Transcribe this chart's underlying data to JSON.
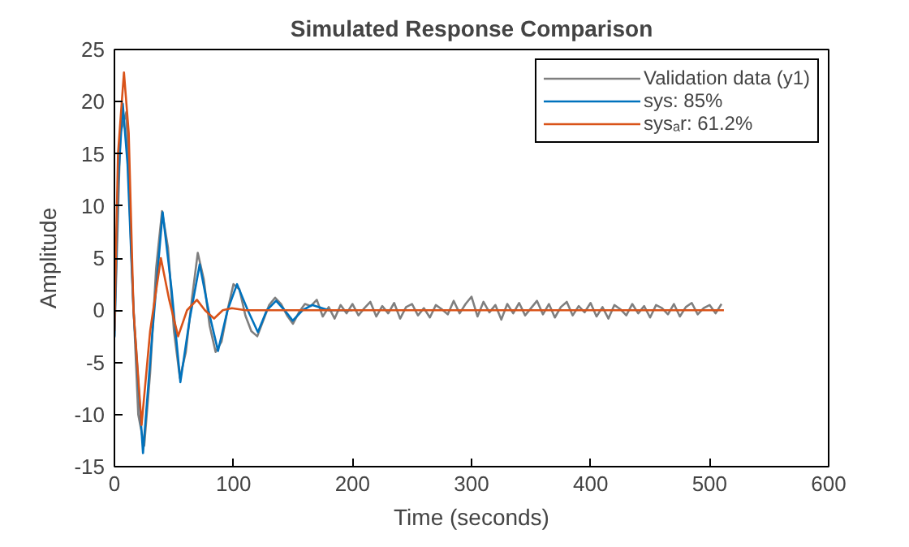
{
  "chart_data": {
    "type": "line",
    "title": "Simulated Response Comparison",
    "xlabel": "Time (seconds)",
    "ylabel": "Amplitude",
    "xlim": [
      0,
      600
    ],
    "xticks": [
      0,
      100,
      200,
      300,
      400,
      500,
      600
    ],
    "ylim": [
      -15,
      25
    ],
    "yticks": [
      -15,
      -10,
      -5,
      0,
      5,
      10,
      15,
      20,
      25
    ],
    "grid": false,
    "legend": "top right",
    "line_style": "solid",
    "marker": "none",
    "series": [
      {
        "name": "Validation data (y1)",
        "color": "#7f7f7f",
        "x": [
          0,
          5,
          10,
          15,
          20,
          25,
          30,
          35,
          40,
          45,
          50,
          55,
          60,
          65,
          70,
          75,
          80,
          85,
          90,
          95,
          100,
          105,
          110,
          115,
          120,
          125,
          130,
          135,
          140,
          145,
          150,
          155,
          160,
          165,
          170,
          175,
          180,
          185,
          190,
          195,
          200,
          205,
          210,
          215,
          220,
          225,
          230,
          235,
          240,
          245,
          250,
          255,
          260,
          265,
          270,
          275,
          280,
          285,
          290,
          295,
          300,
          305,
          310,
          315,
          320,
          325,
          330,
          335,
          340,
          345,
          350,
          355,
          360,
          365,
          370,
          375,
          380,
          385,
          390,
          395,
          400,
          405,
          410,
          415,
          420,
          425,
          430,
          435,
          440,
          445,
          450,
          455,
          460,
          465,
          470,
          475,
          480,
          485,
          490,
          495,
          500,
          505,
          510
        ],
        "values": [
          -2.5,
          17,
          19,
          3,
          -10,
          -13,
          -6,
          4,
          9.5,
          6,
          -2,
          -6.5,
          -4,
          1,
          5.5,
          3,
          -1.5,
          -4,
          -3,
          0,
          2.5,
          2,
          -0.5,
          -2,
          -2.5,
          -1,
          0.5,
          1.2,
          0.6,
          -0.5,
          -1.3,
          -0.2,
          0.6,
          0.4,
          1.0,
          -0.6,
          0.3,
          -0.8,
          0.5,
          -0.3,
          0.6,
          -0.5,
          0.2,
          0.8,
          -0.6,
          0.4,
          -0.3,
          0.7,
          -0.8,
          0.3,
          0.6,
          -0.5,
          0.2,
          -0.7,
          0.5,
          0.1,
          -0.4,
          0.9,
          -0.3,
          0.6,
          1.3,
          -0.6,
          0.8,
          -0.2,
          0.5,
          -0.9,
          0.6,
          -0.3,
          0.7,
          -0.5,
          0.2,
          0.9,
          -0.4,
          0.6,
          -0.7,
          0.3,
          0.8,
          -0.5,
          0.4,
          -0.2,
          0.7,
          -0.6,
          0.3,
          -0.8,
          0.5,
          0.1,
          -0.5,
          0.6,
          -0.3,
          0.4,
          -0.7,
          0.5,
          0.2,
          -0.4,
          0.6,
          -0.6,
          0.3,
          0.7,
          -0.4,
          0.2,
          0.5,
          -0.3,
          0.6
        ]
      },
      {
        "name": "sys: 85%",
        "color": "#0072bd",
        "x": [
          0,
          3,
          7,
          11,
          16,
          24,
          32,
          40.5,
          48,
          55.4,
          63,
          71.6,
          79,
          87,
          95,
          103,
          112,
          120.5,
          128,
          135.8,
          143,
          149.8,
          158,
          166,
          180,
          200
        ],
        "values": [
          -2.6,
          12,
          19.8,
          14,
          0,
          -13.7,
          -2,
          9.4,
          2,
          -6.9,
          -1,
          4.4,
          0,
          -3.9,
          0,
          2.5,
          0,
          -2.1,
          0,
          0.9,
          0,
          -1.0,
          0,
          0.5,
          0,
          0
        ]
      },
      {
        "name": "sysₐr: 61.2%",
        "color": "#d95319",
        "x": [
          0,
          3,
          8,
          12,
          16,
          22.8,
          30,
          39,
          46,
          53.5,
          61,
          69.3,
          76,
          83.7,
          91,
          98.6,
          110,
          150,
          300,
          512
        ],
        "values": [
          -2,
          15,
          22.8,
          17,
          0,
          -11,
          -2,
          5.0,
          1,
          -2.5,
          0,
          1.0,
          0,
          -0.8,
          0,
          0.2,
          0,
          0,
          0,
          0
        ]
      }
    ]
  }
}
